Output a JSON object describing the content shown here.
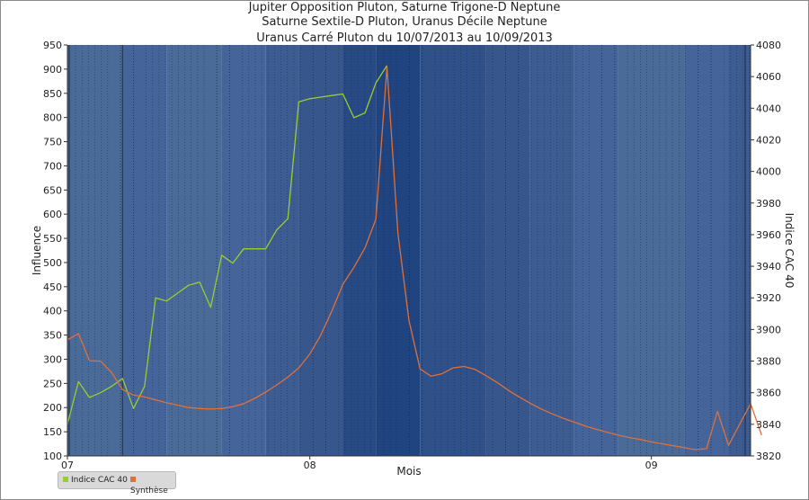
{
  "title_lines": [
    "Jupiter Opposition Pluton, Saturne Trigone-D Neptune",
    "Saturne Sextile-D Pluton, Uranus Décile Neptune",
    "Uranus Carré Pluton du 10/07/2013 au 10/09/2013"
  ],
  "legend": {
    "cac": {
      "label": "Indice CAC 40",
      "color": "#9acd32"
    },
    "synthese": {
      "label": "Synthèse",
      "color": "#e0703a"
    }
  },
  "chart_data": {
    "type": "line",
    "xlabel": "Mois",
    "ylabel_left": "Influence",
    "ylabel_right": "Indice CAC 40",
    "x_domain_days": [
      0,
      62
    ],
    "x_ticks": [
      {
        "day": 0,
        "label": "07"
      },
      {
        "day": 22,
        "label": "08"
      },
      {
        "day": 53,
        "label": "09"
      }
    ],
    "y_left": {
      "lim": [
        100,
        950
      ],
      "ticks": [
        100,
        150,
        200,
        250,
        300,
        350,
        400,
        450,
        500,
        550,
        600,
        650,
        700,
        750,
        800,
        850,
        900,
        950
      ]
    },
    "y_right": {
      "lim": [
        3820,
        4080
      ],
      "ticks": [
        3820,
        3840,
        3860,
        3880,
        3900,
        3920,
        3940,
        3960,
        3980,
        4000,
        4020,
        4040,
        4060,
        4080
      ]
    },
    "grid": false,
    "legend_position": "bottom-left",
    "background_colors": [
      "#4a6a98",
      "#45659a",
      "#3d5d92",
      "#36568c",
      "#2f5088",
      "#274a84",
      "#1f4480"
    ],
    "series": [
      {
        "name": "Indice CAC 40",
        "axis": "right",
        "color": "#9acd32",
        "points": [
          [
            0,
            3840
          ],
          [
            1,
            3867
          ],
          [
            2,
            3857
          ],
          [
            3,
            3860
          ],
          [
            4,
            3864
          ],
          [
            5,
            3869
          ],
          [
            6,
            3850
          ],
          [
            7,
            3864
          ],
          [
            8,
            3920
          ],
          [
            9,
            3918
          ],
          [
            10,
            3923
          ],
          [
            11,
            3928
          ],
          [
            12,
            3930
          ],
          [
            13,
            3914
          ],
          [
            14,
            3947
          ],
          [
            15,
            3942
          ],
          [
            16,
            3951
          ],
          [
            17,
            3951
          ],
          [
            18,
            3951
          ],
          [
            19,
            3963
          ],
          [
            20,
            3970
          ],
          [
            21,
            4044
          ],
          [
            22,
            4046
          ],
          [
            23,
            4047
          ],
          [
            24,
            4048
          ],
          [
            25,
            4049
          ],
          [
            26,
            4034
          ],
          [
            27,
            4037
          ],
          [
            28,
            4056
          ],
          [
            29,
            4067
          ]
        ]
      },
      {
        "name": "Synthèse",
        "axis": "left",
        "color": "#e0703a",
        "points": [
          [
            0,
            340
          ],
          [
            1,
            353
          ],
          [
            2,
            297
          ],
          [
            3,
            296
          ],
          [
            4,
            273
          ],
          [
            5,
            237
          ],
          [
            6,
            226
          ],
          [
            7,
            222
          ],
          [
            8,
            216
          ],
          [
            9,
            210
          ],
          [
            10,
            205
          ],
          [
            11,
            200
          ],
          [
            12,
            198
          ],
          [
            13,
            197
          ],
          [
            14,
            198
          ],
          [
            15,
            202
          ],
          [
            16,
            208
          ],
          [
            17,
            219
          ],
          [
            18,
            232
          ],
          [
            19,
            247
          ],
          [
            20,
            263
          ],
          [
            21,
            282
          ],
          [
            22,
            311
          ],
          [
            23,
            350
          ],
          [
            24,
            400
          ],
          [
            25,
            455
          ],
          [
            26,
            490
          ],
          [
            27,
            530
          ],
          [
            28,
            590
          ],
          [
            29,
            905
          ],
          [
            30,
            560
          ],
          [
            31,
            380
          ],
          [
            32,
            280
          ],
          [
            33,
            265
          ],
          [
            34,
            270
          ],
          [
            35,
            282
          ],
          [
            36,
            285
          ],
          [
            37,
            279
          ],
          [
            38,
            266
          ],
          [
            39,
            252
          ],
          [
            40,
            236
          ],
          [
            41,
            222
          ],
          [
            42,
            209
          ],
          [
            43,
            197
          ],
          [
            44,
            187
          ],
          [
            45,
            178
          ],
          [
            46,
            170
          ],
          [
            47,
            162
          ],
          [
            48,
            155
          ],
          [
            49,
            149
          ],
          [
            50,
            143
          ],
          [
            51,
            138
          ],
          [
            52,
            134
          ],
          [
            53,
            129
          ],
          [
            54,
            125
          ],
          [
            55,
            121
          ],
          [
            56,
            117
          ],
          [
            57,
            113
          ],
          [
            58,
            115
          ],
          [
            59,
            192
          ],
          [
            60,
            122
          ],
          [
            61,
            165
          ],
          [
            62,
            208
          ],
          [
            63,
            143
          ]
        ]
      }
    ]
  }
}
